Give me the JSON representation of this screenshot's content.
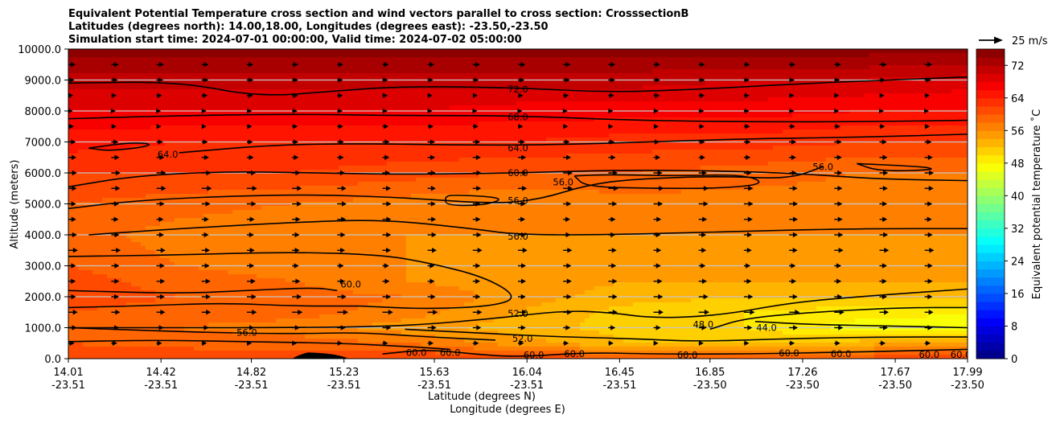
{
  "chart_data": {
    "type": "contourf",
    "title_lines": [
      "Equivalent Potential Temperature cross section and wind vectors parallel to cross section: CrosssectionB",
      "Latitudes (degrees north): 14.00,18.00, Longitudes (degrees east): -23.50,-23.50",
      "Simulation start time: 2024-07-01 00:00:00, Valid time: 2024-07-02 05:00:00"
    ],
    "ylabel": "Altitude (meters)",
    "xlabel_lat": "Latitude (degrees N)",
    "xlabel_lon": "Longitude (degrees E)",
    "ylim": [
      0,
      10000
    ],
    "yticks": [
      "0.0",
      "1000.0",
      "2000.0",
      "3000.0",
      "4000.0",
      "5000.0",
      "6000.0",
      "7000.0",
      "8000.0",
      "9000.0",
      "10000.0"
    ],
    "ytick_values": [
      0,
      1000,
      2000,
      3000,
      4000,
      5000,
      6000,
      7000,
      8000,
      9000,
      10000
    ],
    "xlim": [
      14.01,
      17.99
    ],
    "xticks": [
      {
        "lat": "14.01",
        "lon": "-23.51",
        "v": 14.01
      },
      {
        "lat": "14.42",
        "lon": "-23.51",
        "v": 14.42
      },
      {
        "lat": "14.82",
        "lon": "-23.51",
        "v": 14.82
      },
      {
        "lat": "15.23",
        "lon": "-23.51",
        "v": 15.23
      },
      {
        "lat": "15.63",
        "lon": "-23.51",
        "v": 15.63
      },
      {
        "lat": "16.04",
        "lon": "-23.51",
        "v": 16.04
      },
      {
        "lat": "16.45",
        "lon": "-23.51",
        "v": 16.45
      },
      {
        "lat": "16.85",
        "lon": "-23.50",
        "v": 16.85
      },
      {
        "lat": "17.26",
        "lon": "-23.50",
        "v": 17.26
      },
      {
        "lat": "17.67",
        "lon": "-23.50",
        "v": 17.67
      },
      {
        "lat": "17.99",
        "lon": "-23.50",
        "v": 17.99
      }
    ],
    "colorbar": {
      "label": "Equivalent potential temperature $^\\circ$C",
      "label_text": "Equivalent potential temperature ˚C",
      "min": 0,
      "max": 76,
      "step": 2,
      "ticks": [
        "0",
        "8",
        "16",
        "24",
        "32",
        "40",
        "48",
        "56",
        "64",
        "72"
      ],
      "tick_values": [
        0,
        8,
        16,
        24,
        32,
        40,
        48,
        56,
        64,
        72
      ],
      "colormap": "jet"
    },
    "quiver_key": {
      "label": "25 m/s",
      "value": 25
    },
    "theta_e_field": {
      "description": "theta-e (deg C) sampled at latitudes x heights",
      "lats": [
        14.01,
        14.5,
        15.0,
        15.5,
        16.0,
        16.5,
        17.0,
        17.5,
        17.99
      ],
      "heights_m": [
        0,
        500,
        1000,
        1500,
        2000,
        2500,
        3000,
        4000,
        5000,
        6000,
        7000,
        8000,
        9000,
        10000
      ],
      "values": [
        [
          61,
          62,
          61,
          62,
          61,
          61,
          61,
          61,
          61
        ],
        [
          60,
          59,
          59,
          58,
          55,
          52,
          52,
          53,
          55
        ],
        [
          58,
          58,
          57,
          55,
          53,
          51,
          50,
          47,
          47
        ],
        [
          60,
          59,
          59,
          57,
          54,
          51,
          50,
          49,
          48
        ],
        [
          61,
          60,
          59,
          58,
          55,
          53,
          52,
          52,
          52
        ],
        [
          61,
          59,
          58,
          56,
          55,
          54,
          54,
          54,
          54
        ],
        [
          60,
          58,
          57,
          56,
          55,
          55,
          55,
          55,
          55
        ],
        [
          59,
          57,
          56,
          56,
          56,
          56,
          56,
          56,
          56
        ],
        [
          60,
          59,
          58,
          57,
          56,
          57,
          57,
          57,
          57
        ],
        [
          62,
          62,
          62,
          61,
          60,
          60,
          59,
          58,
          58
        ],
        [
          65,
          64,
          64,
          64,
          64,
          63,
          63,
          62,
          62
        ],
        [
          68,
          68,
          68,
          68,
          67,
          67,
          67,
          66,
          66
        ],
        [
          71,
          71,
          71,
          71,
          71,
          71,
          70,
          70,
          69
        ],
        [
          75,
          75,
          75,
          75,
          75,
          75,
          75,
          75,
          75
        ]
      ]
    },
    "contour_labels": [
      {
        "text": "72.0",
        "lat": 16.0,
        "z": 8700
      },
      {
        "text": "68.0",
        "lat": 16.0,
        "z": 7800
      },
      {
        "text": "64.0",
        "lat": 14.45,
        "z": 6600
      },
      {
        "text": "64.0",
        "lat": 16.0,
        "z": 6800
      },
      {
        "text": "60.0",
        "lat": 16.0,
        "z": 6000
      },
      {
        "text": "56.0",
        "lat": 16.2,
        "z": 5700
      },
      {
        "text": "56.0",
        "lat": 16.0,
        "z": 5100
      },
      {
        "text": "56.0",
        "lat": 17.35,
        "z": 6200
      },
      {
        "text": "56.0",
        "lat": 16.0,
        "z": 3950
      },
      {
        "text": "60.0",
        "lat": 15.26,
        "z": 2400
      },
      {
        "text": "52.0",
        "lat": 16.0,
        "z": 1450
      },
      {
        "text": "52.0",
        "lat": 16.02,
        "z": 650
      },
      {
        "text": "56.0",
        "lat": 14.8,
        "z": 850
      },
      {
        "text": "60.0",
        "lat": 15.55,
        "z": 200
      },
      {
        "text": "60.0",
        "lat": 15.7,
        "z": 200
      },
      {
        "text": "60.0",
        "lat": 16.07,
        "z": 120
      },
      {
        "text": "60.0",
        "lat": 16.25,
        "z": 150
      },
      {
        "text": "60.0",
        "lat": 16.75,
        "z": 120
      },
      {
        "text": "48.0",
        "lat": 16.82,
        "z": 1100
      },
      {
        "text": "44.0",
        "lat": 17.1,
        "z": 1000
      },
      {
        "text": "60.0",
        "lat": 17.2,
        "z": 180
      },
      {
        "text": "60.0",
        "lat": 17.43,
        "z": 150
      },
      {
        "text": "60.0",
        "lat": 17.82,
        "z": 130
      },
      {
        "text": "60.0",
        "lat": 17.96,
        "z": 130
      }
    ],
    "contour_lines": [
      {
        "level": 72,
        "pts": [
          [
            14.01,
            8900
          ],
          [
            14.5,
            8950
          ],
          [
            14.85,
            8450
          ],
          [
            15.2,
            8650
          ],
          [
            15.5,
            8800
          ],
          [
            16.0,
            8750
          ],
          [
            16.4,
            8600
          ],
          [
            16.8,
            8700
          ],
          [
            17.3,
            8900
          ],
          [
            17.99,
            9100
          ]
        ]
      },
      {
        "level": 68,
        "pts": [
          [
            14.01,
            7750
          ],
          [
            14.5,
            7850
          ],
          [
            15.0,
            7900
          ],
          [
            15.5,
            7850
          ],
          [
            16.0,
            7850
          ],
          [
            16.5,
            7700
          ],
          [
            17.0,
            7650
          ],
          [
            17.5,
            7650
          ],
          [
            17.99,
            7700
          ]
        ]
      },
      {
        "level": 64,
        "pts": [
          [
            14.5,
            6650
          ],
          [
            14.9,
            6900
          ],
          [
            15.3,
            6950
          ],
          [
            15.7,
            6900
          ],
          [
            16.1,
            6900
          ],
          [
            16.6,
            7000
          ],
          [
            17.0,
            7100
          ],
          [
            17.5,
            7150
          ],
          [
            17.99,
            7250
          ]
        ]
      },
      {
        "level": 64,
        "pts": [
          [
            14.1,
            6800
          ],
          [
            14.3,
            7000
          ],
          [
            14.4,
            6900
          ],
          [
            14.2,
            6700
          ],
          [
            14.1,
            6800
          ]
        ]
      },
      {
        "level": 60,
        "pts": [
          [
            14.01,
            5550
          ],
          [
            14.3,
            5900
          ],
          [
            14.7,
            6050
          ],
          [
            15.1,
            6000
          ],
          [
            15.5,
            5950
          ],
          [
            16.0,
            6000
          ],
          [
            16.5,
            6100
          ],
          [
            17.0,
            6050
          ],
          [
            17.3,
            5950
          ],
          [
            17.6,
            5800
          ],
          [
            17.99,
            5750
          ]
        ]
      },
      {
        "level": 56,
        "pts": [
          [
            14.01,
            4850
          ],
          [
            14.3,
            5100
          ],
          [
            14.7,
            5250
          ],
          [
            15.1,
            5300
          ],
          [
            15.5,
            5200
          ],
          [
            15.9,
            5000
          ],
          [
            16.1,
            5150
          ],
          [
            16.3,
            5600
          ],
          [
            16.5,
            5800
          ],
          [
            16.9,
            5900
          ],
          [
            17.2,
            5800
          ],
          [
            17.35,
            6200
          ]
        ]
      },
      {
        "level": 56,
        "pts": [
          [
            15.68,
            5200
          ],
          [
            15.68,
            4950
          ],
          [
            15.85,
            4950
          ],
          [
            15.95,
            5200
          ],
          [
            15.7,
            5300
          ],
          [
            15.68,
            5200
          ]
        ]
      },
      {
        "level": 56,
        "pts": [
          [
            16.25,
            5900
          ],
          [
            16.3,
            5550
          ],
          [
            16.6,
            5500
          ],
          [
            16.9,
            5500
          ],
          [
            17.1,
            5650
          ],
          [
            17.0,
            5950
          ],
          [
            16.7,
            5900
          ],
          [
            16.4,
            5950
          ],
          [
            16.25,
            5900
          ]
        ]
      },
      {
        "level": 56,
        "pts": [
          [
            17.5,
            6300
          ],
          [
            17.8,
            6200
          ],
          [
            17.85,
            6100
          ],
          [
            17.6,
            6050
          ],
          [
            17.5,
            6300
          ]
        ]
      },
      {
        "level": 56,
        "pts": [
          [
            14.1,
            4000
          ],
          [
            14.5,
            4200
          ],
          [
            15.0,
            4400
          ],
          [
            15.4,
            4500
          ],
          [
            15.8,
            4200
          ],
          [
            16.0,
            4000
          ],
          [
            16.4,
            4000
          ],
          [
            16.9,
            4100
          ],
          [
            17.5,
            4200
          ],
          [
            17.99,
            4200
          ]
        ]
      },
      {
        "level": 60,
        "pts": [
          [
            14.01,
            3300
          ],
          [
            14.5,
            3350
          ],
          [
            15.0,
            3450
          ],
          [
            15.4,
            3350
          ],
          [
            15.6,
            3100
          ],
          [
            15.85,
            2650
          ],
          [
            16.0,
            2000
          ],
          [
            15.9,
            1700
          ],
          [
            15.6,
            1600
          ],
          [
            15.3,
            1700
          ]
        ]
      },
      {
        "level": 60,
        "pts": [
          [
            14.01,
            2200
          ],
          [
            14.5,
            2100
          ],
          [
            14.8,
            2200
          ],
          [
            15.1,
            2300
          ],
          [
            15.2,
            2200
          ]
        ]
      },
      {
        "level": 60,
        "pts": [
          [
            14.01,
            1650
          ],
          [
            14.3,
            1700
          ],
          [
            14.7,
            1800
          ],
          [
            15.0,
            1700
          ],
          [
            15.3,
            1700
          ]
        ]
      },
      {
        "level": 52,
        "pts": [
          [
            14.01,
            1000
          ],
          [
            14.5,
            1000
          ],
          [
            15.0,
            1000
          ],
          [
            15.5,
            1050
          ],
          [
            15.9,
            1300
          ],
          [
            16.2,
            1550
          ],
          [
            16.4,
            1500
          ],
          [
            16.6,
            1300
          ],
          [
            16.9,
            1400
          ],
          [
            17.2,
            1800
          ],
          [
            17.5,
            2000
          ],
          [
            17.99,
            2250
          ]
        ]
      },
      {
        "level": 52,
        "pts": [
          [
            15.5,
            950
          ],
          [
            15.9,
            800
          ],
          [
            16.2,
            700
          ],
          [
            16.5,
            650
          ],
          [
            16.8,
            550
          ],
          [
            17.2,
            650
          ],
          [
            17.6,
            700
          ],
          [
            17.99,
            700
          ]
        ]
      },
      {
        "level": 56,
        "pts": [
          [
            14.01,
            1000
          ],
          [
            14.2,
            950
          ],
          [
            14.6,
            850
          ],
          [
            15.0,
            800
          ],
          [
            15.3,
            850
          ],
          [
            15.6,
            700
          ],
          [
            15.9,
            600
          ]
        ]
      },
      {
        "level": 48,
        "pts": [
          [
            16.85,
            950
          ],
          [
            17.0,
            1300
          ],
          [
            17.3,
            1500
          ],
          [
            17.7,
            1650
          ],
          [
            17.99,
            1650
          ]
        ]
      },
      {
        "level": 44,
        "pts": [
          [
            17.05,
            1200
          ],
          [
            17.3,
            1100
          ],
          [
            17.7,
            1050
          ],
          [
            17.99,
            1000
          ]
        ]
      },
      {
        "level": 60,
        "pts": [
          [
            15.4,
            150
          ],
          [
            15.6,
            300
          ],
          [
            15.8,
            150
          ],
          [
            16.0,
            50
          ],
          [
            16.3,
            200
          ],
          [
            16.6,
            150
          ],
          [
            17.0,
            150
          ],
          [
            17.4,
            200
          ],
          [
            17.7,
            250
          ],
          [
            17.99,
            300
          ]
        ]
      },
      {
        "level": 60,
        "pts": [
          [
            14.01,
            550
          ],
          [
            14.4,
            600
          ],
          [
            14.8,
            550
          ],
          [
            15.2,
            500
          ],
          [
            15.5,
            400
          ],
          [
            15.7,
            300
          ]
        ]
      }
    ],
    "terrain": {
      "lat_range": [
        15.0,
        15.25
      ],
      "peak_lat": 15.07,
      "peak_height_m": 200
    },
    "wind": {
      "lats": [
        14.01,
        14.2,
        14.4,
        14.6,
        14.8,
        15.0,
        15.2,
        15.4,
        15.6,
        15.8,
        16.0,
        16.2,
        16.4,
        16.6,
        16.8,
        17.0,
        17.2,
        17.4,
        17.6,
        17.8,
        17.99
      ],
      "heights_m": [
        500,
        1000,
        1500,
        2000,
        2500,
        3000,
        3500,
        4000,
        4500,
        5000,
        5500,
        6000,
        6500,
        7000,
        7500,
        8000,
        8500,
        9000,
        9500
      ],
      "u_ms_profile": [
        9,
        13,
        16,
        14,
        13,
        12,
        14,
        13,
        13,
        14,
        15,
        14,
        12,
        11,
        9,
        8,
        9,
        10,
        11
      ]
    }
  }
}
